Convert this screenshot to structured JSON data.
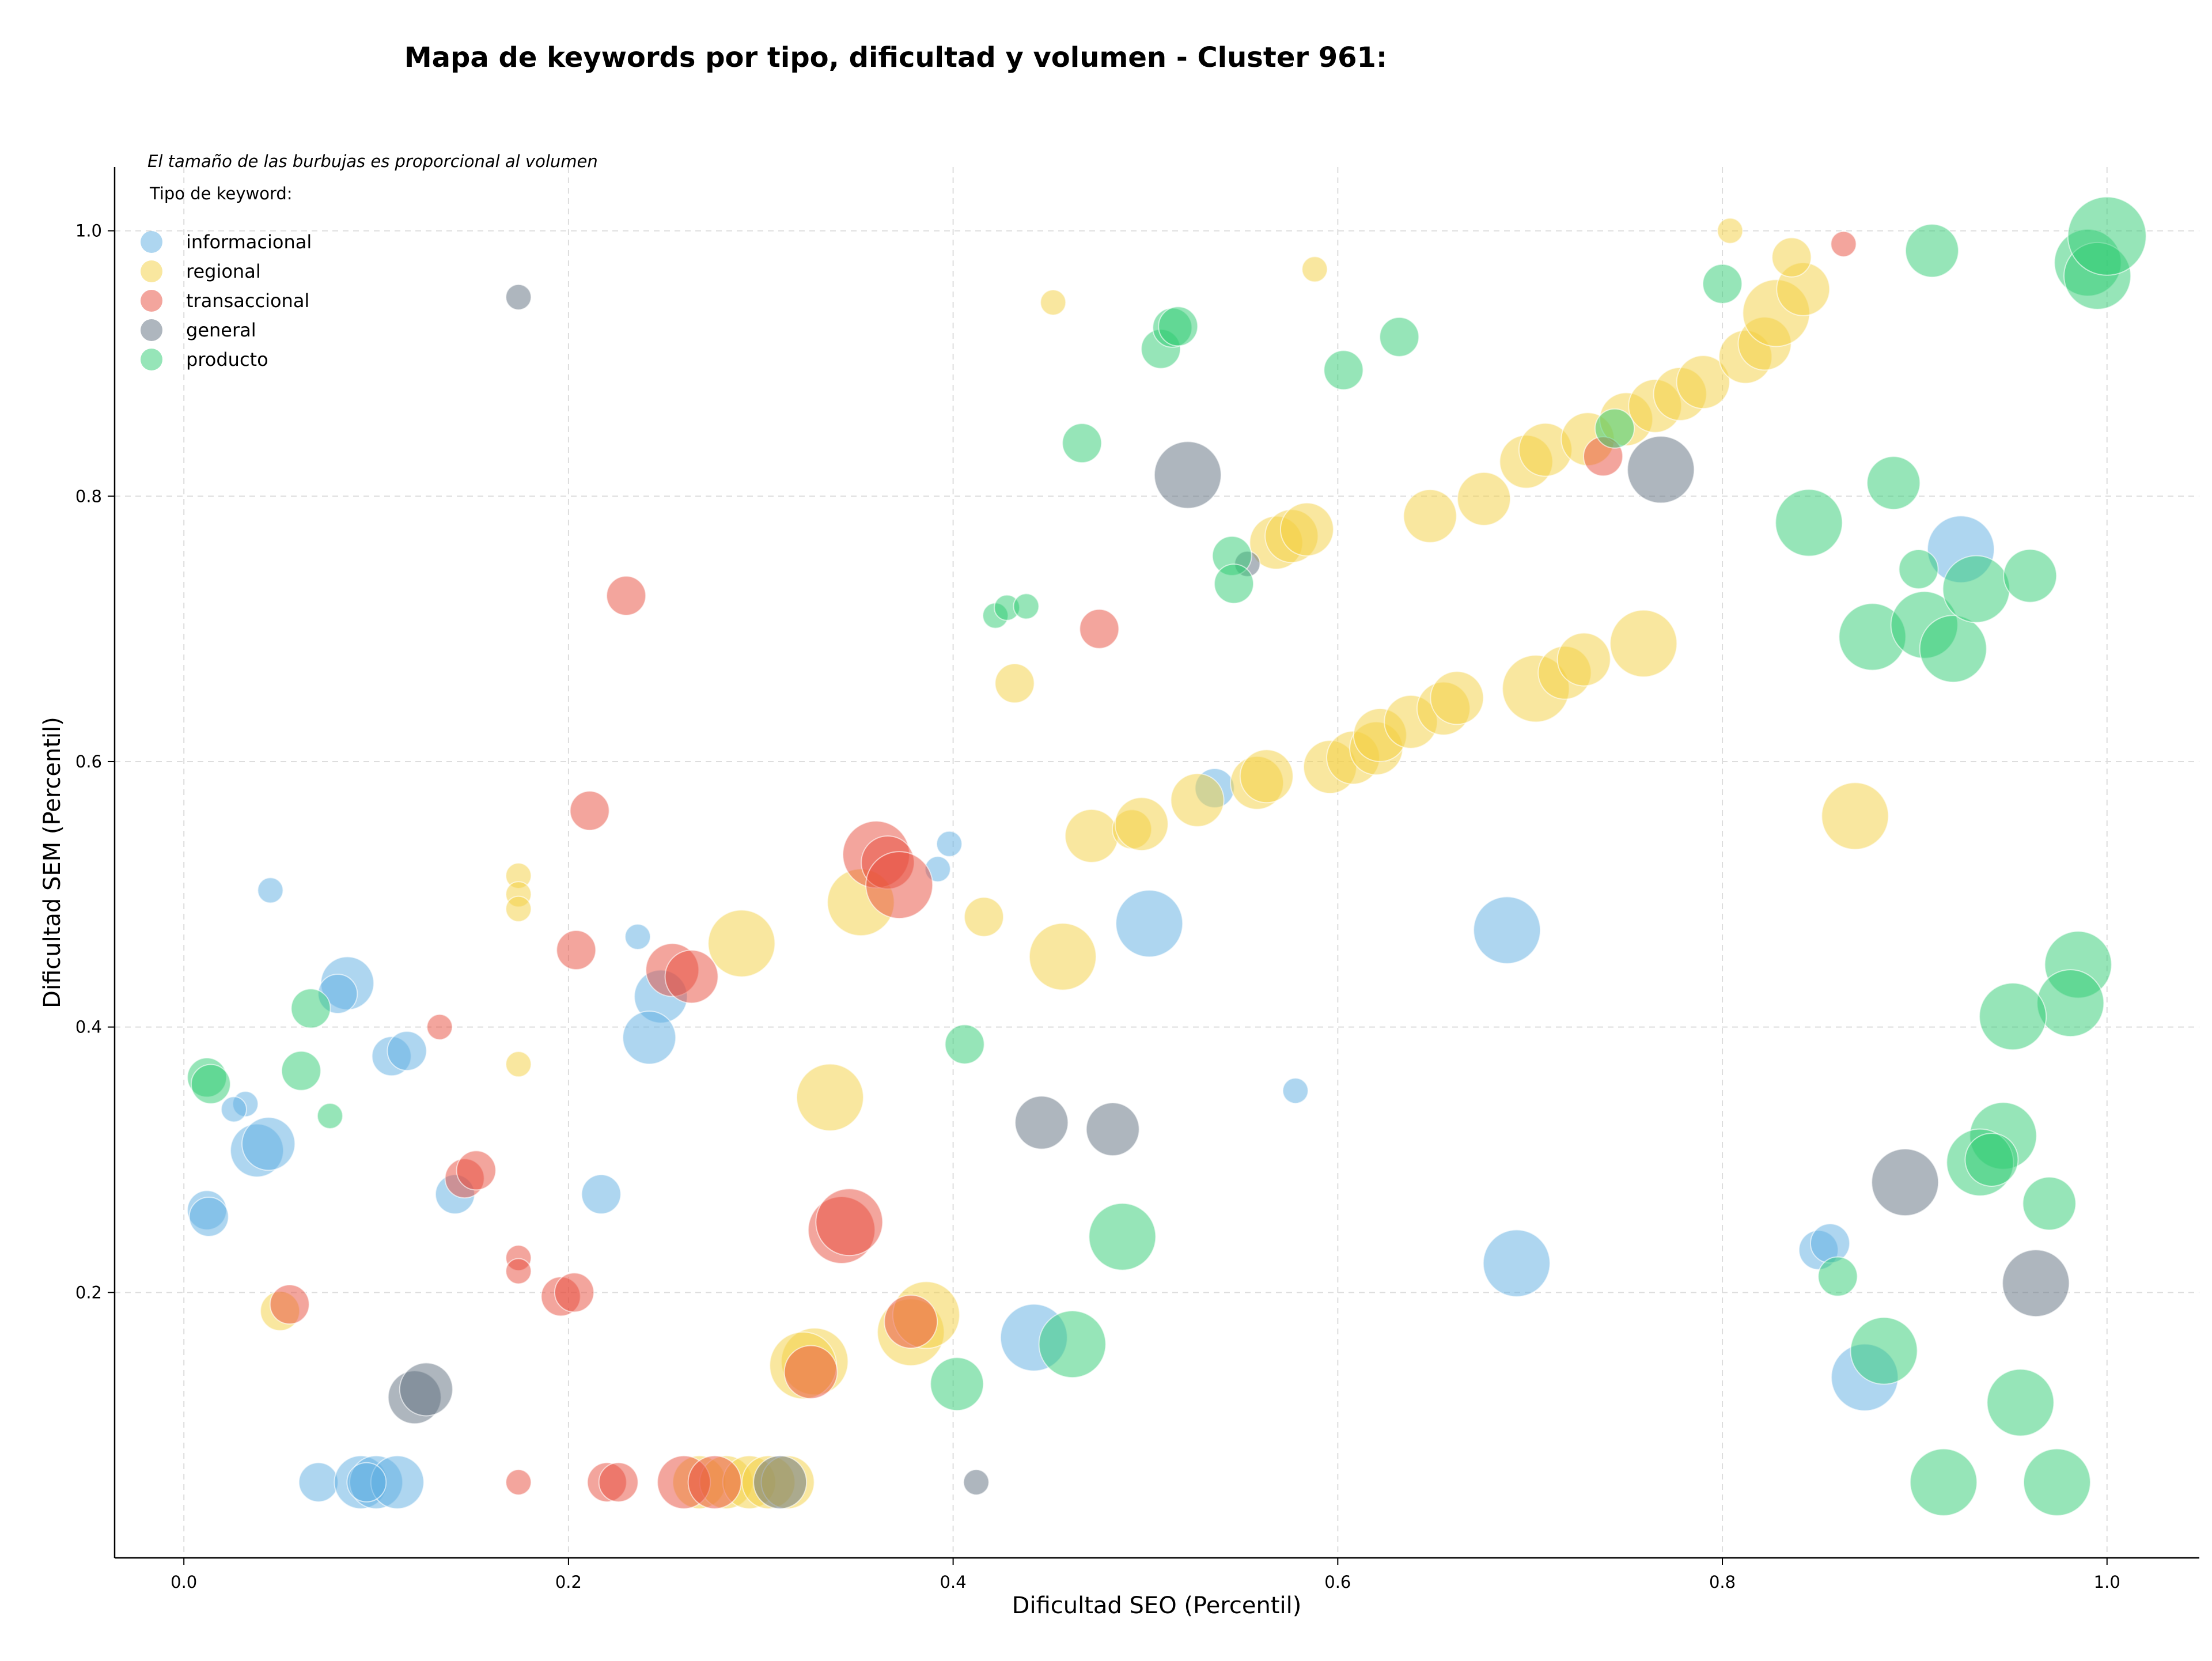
{
  "chart_data": {
    "type": "scatter",
    "title": "Mapa de keywords por tipo, dificultad y volumen - Cluster 961:",
    "xlabel": "Dificultad SEO (Percentil)",
    "ylabel": "Dificultad SEM (Percentil)",
    "xlim": [
      -0.036,
      1.048
    ],
    "ylim": [
      0.0,
      1.048
    ],
    "xticks": [
      "0.0",
      "0.2",
      "0.4",
      "0.6",
      "0.8",
      "1.0"
    ],
    "yticks": [
      "0.2",
      "0.4",
      "0.6",
      "0.8",
      "1.0"
    ],
    "grid": true,
    "legend_placement": "top-left",
    "legend_title": "Tipo de keyword:",
    "annotation": "El tamaño de las burbujas es proporcional al volumen",
    "series": [
      {
        "name": "informacional",
        "color": "#5dade2",
        "points": [
          [
            0.045,
            0.503,
            1
          ],
          [
            0.085,
            0.433,
            3
          ],
          [
            0.08,
            0.425,
            2
          ],
          [
            0.108,
            0.378,
            2
          ],
          [
            0.116,
            0.382,
            2
          ],
          [
            0.236,
            0.468,
            1
          ],
          [
            0.248,
            0.423,
            3
          ],
          [
            0.242,
            0.392,
            3
          ],
          [
            0.398,
            0.538,
            1
          ],
          [
            0.392,
            0.519,
            1
          ],
          [
            0.032,
            0.342,
            1
          ],
          [
            0.026,
            0.338,
            1
          ],
          [
            0.038,
            0.307,
            3
          ],
          [
            0.044,
            0.312,
            3
          ],
          [
            0.012,
            0.262,
            2
          ],
          [
            0.013,
            0.257,
            2
          ],
          [
            0.141,
            0.274,
            2
          ],
          [
            0.217,
            0.274,
            2
          ],
          [
            0.07,
            0.057,
            2
          ],
          [
            0.092,
            0.057,
            3
          ],
          [
            0.1,
            0.057,
            3
          ],
          [
            0.111,
            0.057,
            3
          ],
          [
            0.095,
            0.057,
            2
          ],
          [
            0.536,
            0.58,
            2
          ],
          [
            0.502,
            0.478,
            4
          ],
          [
            0.688,
            0.473,
            4
          ],
          [
            0.578,
            0.352,
            1
          ],
          [
            0.693,
            0.222,
            4
          ],
          [
            0.442,
            0.166,
            4
          ],
          [
            0.924,
            0.76,
            4
          ],
          [
            0.85,
            0.232,
            2
          ],
          [
            0.856,
            0.237,
            2
          ],
          [
            0.874,
            0.136,
            4
          ]
        ]
      },
      {
        "name": "regional",
        "color": "#f4d03f",
        "points": [
          [
            0.174,
            0.514,
            1
          ],
          [
            0.174,
            0.5,
            1
          ],
          [
            0.174,
            0.489,
            1
          ],
          [
            0.174,
            0.372,
            1
          ],
          [
            0.05,
            0.186,
            2
          ],
          [
            0.29,
            0.463,
            4
          ],
          [
            0.352,
            0.494,
            4
          ],
          [
            0.336,
            0.347,
            4
          ],
          [
            0.416,
            0.483,
            2
          ],
          [
            0.457,
            0.453,
            4
          ],
          [
            0.472,
            0.544,
            3
          ],
          [
            0.493,
            0.549,
            2
          ],
          [
            0.498,
            0.553,
            3
          ],
          [
            0.432,
            0.659,
            2
          ],
          [
            0.452,
            0.946,
            1
          ],
          [
            0.588,
            0.971,
            1
          ],
          [
            0.804,
            1.0,
            1
          ],
          [
            0.527,
            0.571,
            3
          ],
          [
            0.558,
            0.584,
            3
          ],
          [
            0.563,
            0.589,
            3
          ],
          [
            0.596,
            0.596,
            3
          ],
          [
            0.608,
            0.603,
            3
          ],
          [
            0.62,
            0.61,
            3
          ],
          [
            0.622,
            0.62,
            3
          ],
          [
            0.638,
            0.63,
            3
          ],
          [
            0.655,
            0.64,
            3
          ],
          [
            0.662,
            0.648,
            3
          ],
          [
            0.703,
            0.655,
            4
          ],
          [
            0.718,
            0.667,
            3
          ],
          [
            0.728,
            0.677,
            3
          ],
          [
            0.759,
            0.689,
            4
          ],
          [
            0.869,
            0.559,
            4
          ],
          [
            0.568,
            0.765,
            3
          ],
          [
            0.576,
            0.77,
            3
          ],
          [
            0.584,
            0.775,
            3
          ],
          [
            0.648,
            0.785,
            3
          ],
          [
            0.676,
            0.798,
            3
          ],
          [
            0.698,
            0.826,
            3
          ],
          [
            0.708,
            0.835,
            3
          ],
          [
            0.73,
            0.843,
            3
          ],
          [
            0.75,
            0.858,
            3
          ],
          [
            0.765,
            0.868,
            3
          ],
          [
            0.778,
            0.877,
            3
          ],
          [
            0.79,
            0.886,
            3
          ],
          [
            0.812,
            0.905,
            3
          ],
          [
            0.822,
            0.915,
            3
          ],
          [
            0.828,
            0.938,
            4
          ],
          [
            0.842,
            0.956,
            3
          ],
          [
            0.836,
            0.98,
            2
          ],
          [
            0.328,
            0.148,
            4
          ],
          [
            0.322,
            0.145,
            4
          ],
          [
            0.378,
            0.17,
            4
          ],
          [
            0.386,
            0.183,
            4
          ],
          [
            0.268,
            0.057,
            3
          ],
          [
            0.282,
            0.057,
            3
          ],
          [
            0.294,
            0.057,
            3
          ],
          [
            0.304,
            0.057,
            3
          ],
          [
            0.314,
            0.057,
            3
          ]
        ]
      },
      {
        "name": "transaccional",
        "color": "#e74c3c",
        "points": [
          [
            0.23,
            0.725,
            2
          ],
          [
            0.211,
            0.563,
            2
          ],
          [
            0.204,
            0.458,
            2
          ],
          [
            0.133,
            0.4,
            1
          ],
          [
            0.146,
            0.286,
            2
          ],
          [
            0.152,
            0.292,
            2
          ],
          [
            0.174,
            0.226,
            1
          ],
          [
            0.174,
            0.216,
            1
          ],
          [
            0.196,
            0.197,
            2
          ],
          [
            0.203,
            0.2,
            2
          ],
          [
            0.055,
            0.191,
            2
          ],
          [
            0.174,
            0.057,
            1
          ],
          [
            0.22,
            0.057,
            2
          ],
          [
            0.226,
            0.057,
            2
          ],
          [
            0.254,
            0.443,
            3
          ],
          [
            0.264,
            0.438,
            3
          ],
          [
            0.36,
            0.53,
            4
          ],
          [
            0.366,
            0.524,
            3
          ],
          [
            0.372,
            0.507,
            4
          ],
          [
            0.342,
            0.247,
            4
          ],
          [
            0.346,
            0.253,
            4
          ],
          [
            0.326,
            0.14,
            3
          ],
          [
            0.378,
            0.178,
            3
          ],
          [
            0.26,
            0.057,
            3
          ],
          [
            0.276,
            0.057,
            3
          ],
          [
            0.476,
            0.7,
            2
          ],
          [
            0.738,
            0.83,
            2
          ],
          [
            0.863,
            0.99,
            1
          ]
        ]
      },
      {
        "name": "general",
        "color": "#5d6d7e",
        "points": [
          [
            0.174,
            0.95,
            1
          ],
          [
            0.12,
            0.121,
            3
          ],
          [
            0.126,
            0.127,
            3
          ],
          [
            0.412,
            0.057,
            1
          ],
          [
            0.446,
            0.328,
            3
          ],
          [
            0.483,
            0.323,
            3
          ],
          [
            0.522,
            0.816,
            4
          ],
          [
            0.553,
            0.749,
            1
          ],
          [
            0.768,
            0.82,
            4
          ],
          [
            0.895,
            0.283,
            4
          ],
          [
            0.963,
            0.207,
            4
          ],
          [
            0.31,
            0.057,
            3
          ]
        ]
      },
      {
        "name": "producto",
        "color": "#2ecc71",
        "points": [
          [
            0.012,
            0.362,
            2
          ],
          [
            0.014,
            0.357,
            2
          ],
          [
            0.061,
            0.367,
            2
          ],
          [
            0.066,
            0.414,
            2
          ],
          [
            0.076,
            0.333,
            1
          ],
          [
            0.406,
            0.387,
            2
          ],
          [
            0.402,
            0.131,
            3
          ],
          [
            0.462,
            0.161,
            4
          ],
          [
            0.488,
            0.242,
            4
          ],
          [
            0.508,
            0.911,
            2
          ],
          [
            0.514,
            0.927,
            2
          ],
          [
            0.517,
            0.928,
            2
          ],
          [
            0.422,
            0.71,
            1
          ],
          [
            0.428,
            0.716,
            1
          ],
          [
            0.438,
            0.717,
            1
          ],
          [
            0.467,
            0.84,
            2
          ],
          [
            0.545,
            0.755,
            2
          ],
          [
            0.546,
            0.734,
            2
          ],
          [
            0.603,
            0.895,
            2
          ],
          [
            0.632,
            0.92,
            2
          ],
          [
            0.744,
            0.851,
            2
          ],
          [
            0.8,
            0.96,
            2
          ],
          [
            0.909,
            0.985,
            3
          ],
          [
            0.99,
            0.976,
            4
          ],
          [
            0.995,
            0.966,
            4
          ],
          [
            1.0,
            0.996,
            5
          ],
          [
            0.845,
            0.78,
            4
          ],
          [
            0.889,
            0.81,
            3
          ],
          [
            0.902,
            0.745,
            2
          ],
          [
            0.878,
            0.694,
            4
          ],
          [
            0.905,
            0.703,
            4
          ],
          [
            0.92,
            0.685,
            4
          ],
          [
            0.932,
            0.73,
            4
          ],
          [
            0.96,
            0.74,
            3
          ],
          [
            0.985,
            0.447,
            4
          ],
          [
            0.981,
            0.418,
            4
          ],
          [
            0.951,
            0.408,
            4
          ],
          [
            0.946,
            0.318,
            4
          ],
          [
            0.934,
            0.298,
            4
          ],
          [
            0.94,
            0.3,
            3
          ],
          [
            0.97,
            0.267,
            3
          ],
          [
            0.86,
            0.212,
            2
          ],
          [
            0.884,
            0.156,
            4
          ],
          [
            0.955,
            0.117,
            4
          ],
          [
            0.915,
            0.057,
            4
          ],
          [
            0.974,
            0.057,
            4
          ]
        ]
      }
    ]
  }
}
